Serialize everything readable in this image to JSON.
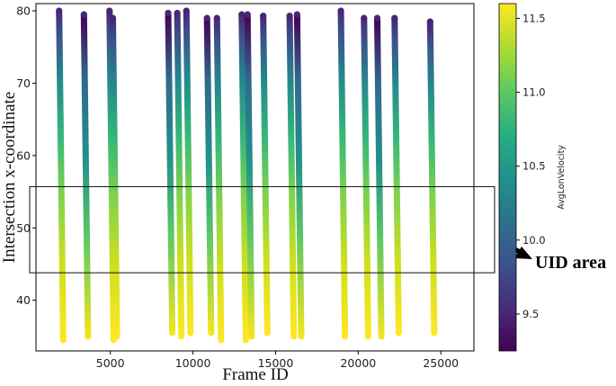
{
  "chart_data": {
    "type": "scatter",
    "title": "",
    "xlabel": "Frame ID",
    "ylabel": "Intersection x-coordinate",
    "xlim": [
      500,
      27000
    ],
    "ylim": [
      33,
      81
    ],
    "xticks": [
      5000,
      10000,
      15000,
      20000,
      25000
    ],
    "yticks": [
      40,
      50,
      60,
      70,
      80
    ],
    "grid": false,
    "colorbar": {
      "label": "AvgLonVelocity",
      "colormap": "viridis",
      "range": [
        9.25,
        11.6
      ],
      "ticks": [
        9.5,
        10.0,
        10.5,
        11.0,
        11.5
      ]
    },
    "trajectories": [
      {
        "x_start": 1900,
        "x_end": 2150,
        "y_start": 80,
        "y_end": 34.5
      },
      {
        "x_start": 3400,
        "x_end": 3650,
        "y_start": 79.5,
        "y_end": 35
      },
      {
        "x_start": 4950,
        "x_end": 5200,
        "y_start": 80,
        "y_end": 34.5
      },
      {
        "x_start": 5150,
        "x_end": 5400,
        "y_start": 79,
        "y_end": 35
      },
      {
        "x_start": 8500,
        "x_end": 8750,
        "y_start": 79.7,
        "y_end": 35.5
      },
      {
        "x_start": 9050,
        "x_end": 9300,
        "y_start": 79.7,
        "y_end": 35
      },
      {
        "x_start": 9600,
        "x_end": 9850,
        "y_start": 80,
        "y_end": 35.5
      },
      {
        "x_start": 10850,
        "x_end": 11100,
        "y_start": 79,
        "y_end": 35.5
      },
      {
        "x_start": 11450,
        "x_end": 11700,
        "y_start": 79,
        "y_end": 34.5
      },
      {
        "x_start": 12950,
        "x_end": 13200,
        "y_start": 79.5,
        "y_end": 34.5
      },
      {
        "x_start": 13300,
        "x_end": 13550,
        "y_start": 79.5,
        "y_end": 35
      },
      {
        "x_start": 14250,
        "x_end": 14500,
        "y_start": 79.3,
        "y_end": 35.5
      },
      {
        "x_start": 15850,
        "x_end": 16100,
        "y_start": 79.3,
        "y_end": 35
      },
      {
        "x_start": 16300,
        "x_end": 16550,
        "y_start": 79.5,
        "y_end": 35
      },
      {
        "x_start": 18950,
        "x_end": 19200,
        "y_start": 80,
        "y_end": 35
      },
      {
        "x_start": 20350,
        "x_end": 20600,
        "y_start": 79,
        "y_end": 35
      },
      {
        "x_start": 21150,
        "x_end": 21400,
        "y_start": 79,
        "y_end": 35
      },
      {
        "x_start": 22200,
        "x_end": 22450,
        "y_start": 79,
        "y_end": 35.5
      },
      {
        "x_start": 24350,
        "x_end": 24600,
        "y_start": 78.5,
        "y_end": 35.5
      }
    ],
    "annotation": {
      "text": "UID area",
      "box_ylim": [
        43.8,
        55.7
      ]
    }
  }
}
